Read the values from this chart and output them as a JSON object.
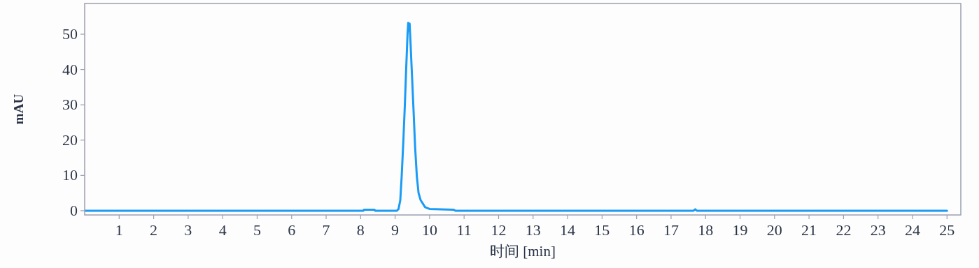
{
  "chart_data": {
    "type": "line",
    "xlabel": "时间 [min]",
    "ylabel": "mAU",
    "xlim": [
      0,
      25.4
    ],
    "ylim": [
      -1.2,
      58.7
    ],
    "xticks": [
      1,
      2,
      3,
      4,
      5,
      6,
      7,
      8,
      9,
      10,
      11,
      12,
      13,
      14,
      15,
      16,
      17,
      18,
      19,
      20,
      21,
      22,
      23,
      24,
      25
    ],
    "yticks": [
      0,
      10,
      20,
      30,
      40,
      50
    ],
    "grid": false,
    "marker": "none",
    "line_style": "solid",
    "series": [
      {
        "color": "#1a9bf5",
        "x": [
          0,
          8.08,
          8.1,
          8.4,
          8.42,
          9.05,
          9.1,
          9.15,
          9.19,
          9.24,
          9.28,
          9.32,
          9.36,
          9.38,
          9.4,
          9.42,
          9.45,
          9.47,
          9.53,
          9.58,
          9.63,
          9.68,
          9.74,
          9.87,
          10.0,
          10.7,
          10.75,
          17.65,
          17.7,
          17.75,
          25
        ],
        "values": [
          0,
          0,
          0.3,
          0.3,
          0,
          0,
          0.5,
          3,
          9.7,
          20,
          29.4,
          40,
          50,
          53.2,
          51,
          53,
          47,
          42.5,
          29.4,
          18,
          9.7,
          5,
          3,
          1,
          0.5,
          0.3,
          0,
          0,
          0.4,
          0,
          0
        ]
      }
    ]
  }
}
